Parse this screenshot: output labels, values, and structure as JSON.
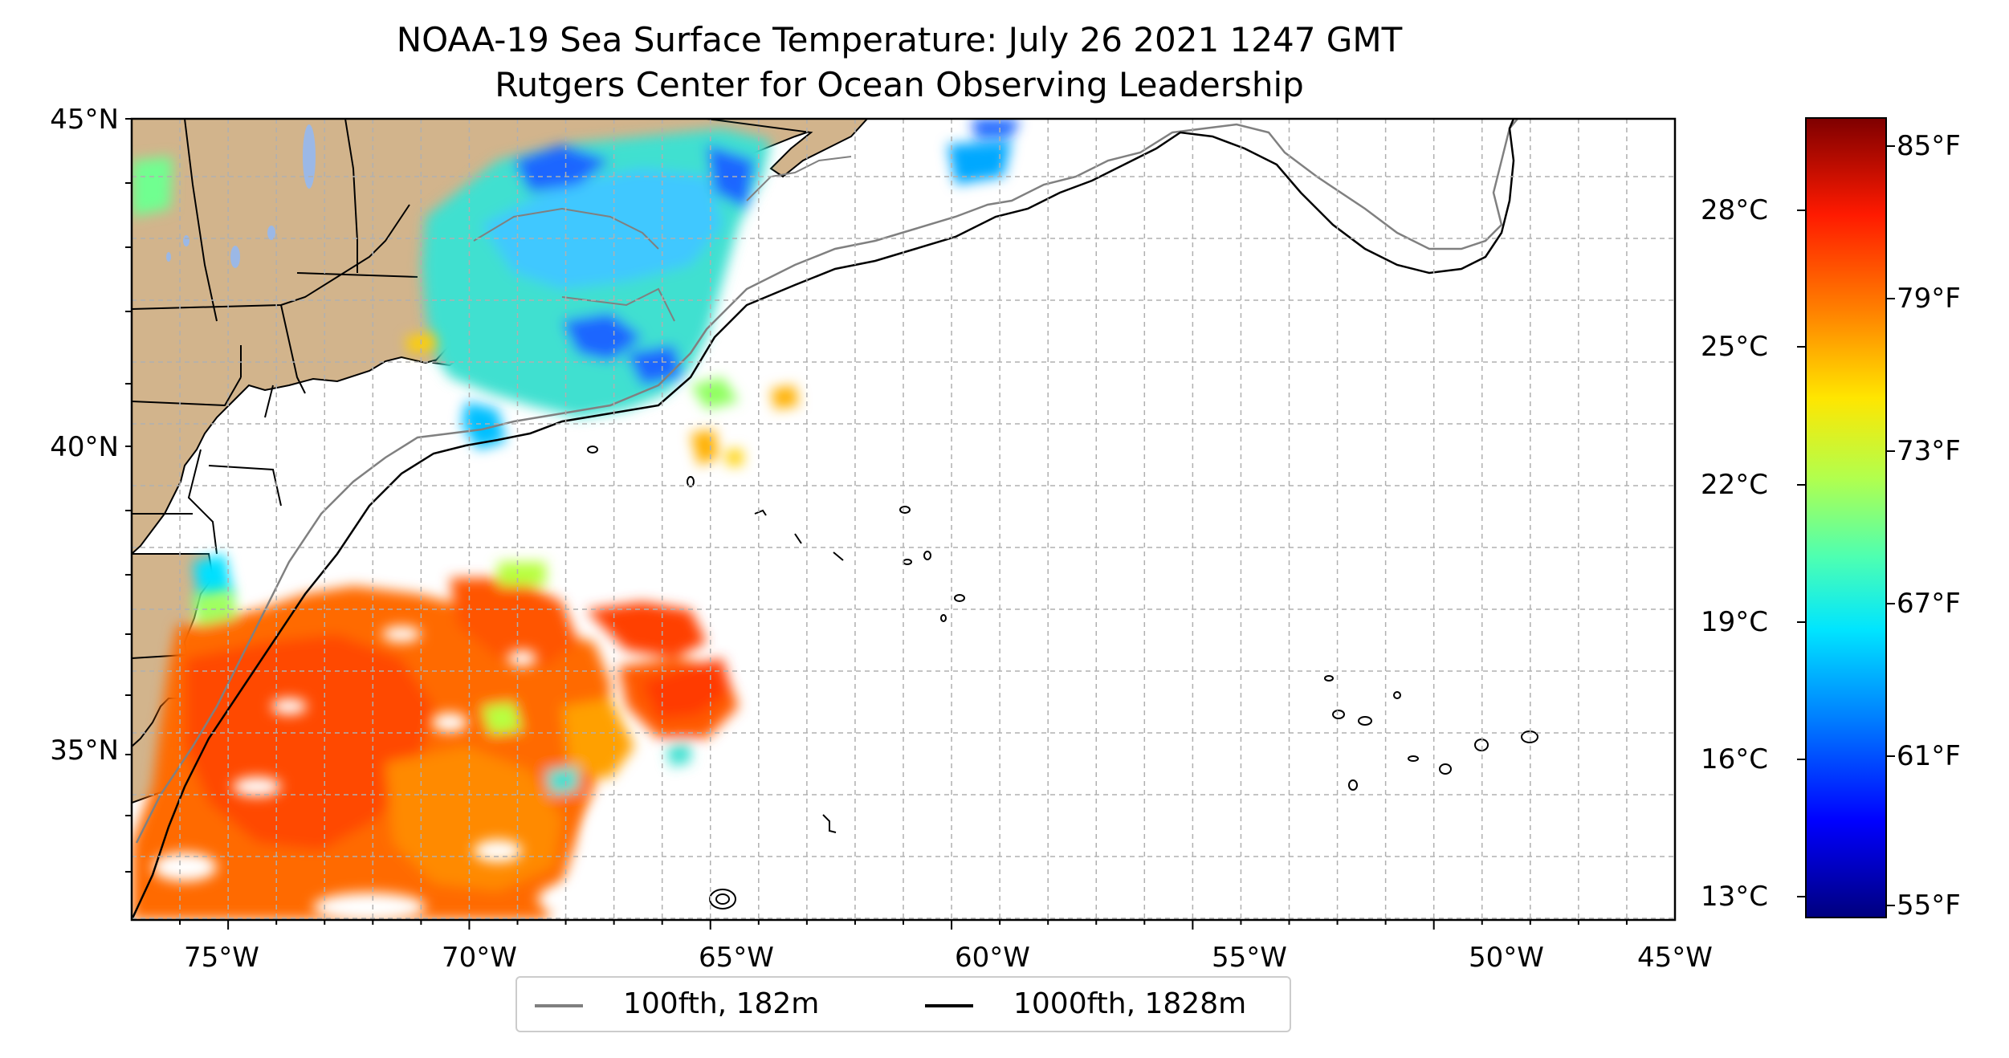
{
  "title": "NOAA-19 Sea Surface Temperature: July 26 2021 1247 GMT",
  "subtitle": "Rutgers Center for Ocean Observing Leadership",
  "axes": {
    "lon_labels": [
      "75°W",
      "70°W",
      "65°W",
      "60°W",
      "55°W",
      "50°W",
      "45°W"
    ],
    "lat_labels": [
      "45°N",
      "40°N",
      "35°N"
    ]
  },
  "legend": {
    "items": [
      {
        "label": "100fth, 182m",
        "color": "#808080"
      },
      {
        "label": "1000fth, 1828m",
        "color": "#000000"
      }
    ]
  },
  "colorbar": {
    "celsius": [
      "28°C",
      "25°C",
      "22°C",
      "19°C",
      "16°C",
      "13°C"
    ],
    "fahrenheit": [
      "85°F",
      "79°F",
      "73°F",
      "67°F",
      "61°F",
      "55°F"
    ]
  },
  "colors": {
    "land": "#d2b48c",
    "cold": "#1e60ff",
    "cool": "#40e0d0",
    "warm": "#ff5a00"
  }
}
